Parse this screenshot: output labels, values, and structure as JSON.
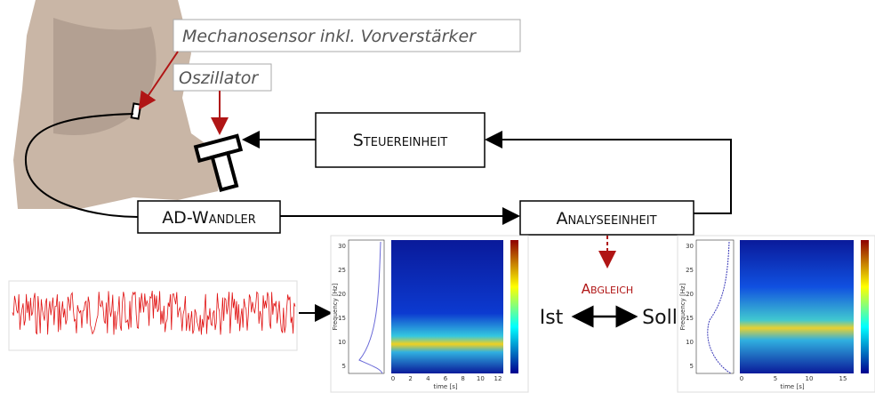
{
  "labels": {
    "sensor": "Mechanosensor inkl. Vorverstärker",
    "oscillator": "Oszillator"
  },
  "blocks": {
    "control": "Steuereinheit",
    "converter": "AD-Wandler",
    "analysis": "Analyseeinheit"
  },
  "comparison": {
    "title": "Abgleich",
    "actual": "Ist",
    "target": "Soll"
  },
  "spectrograms": {
    "y_label": "Frequency [Hz]",
    "x_label": "time [s]",
    "left": {
      "yticks": [
        "5",
        "10",
        "15",
        "20",
        "25",
        "30"
      ],
      "xticks": [
        "0",
        "2",
        "4",
        "6",
        "8",
        "10",
        "12"
      ]
    },
    "right": {
      "yticks": [
        "5",
        "10",
        "15",
        "20",
        "25",
        "30"
      ],
      "xticks": [
        "0",
        "5",
        "10",
        "15"
      ]
    }
  }
}
